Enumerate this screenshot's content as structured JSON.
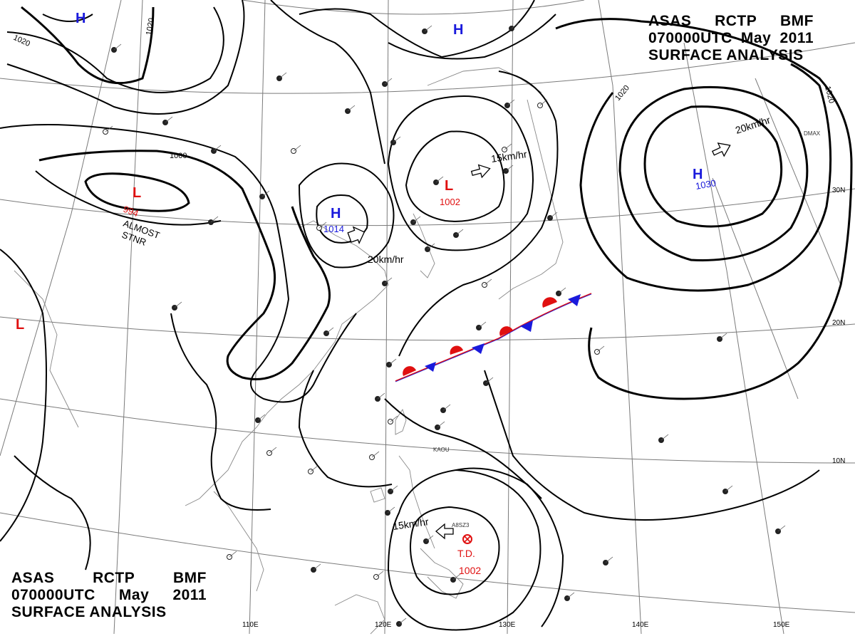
{
  "header": {
    "line1": [
      "ASAS",
      "RCTP",
      "BMF"
    ],
    "line2": [
      "070000UTC",
      "May",
      "2011"
    ],
    "line3": "SURFACE ANALYSIS"
  },
  "lon_labels": [
    "110E",
    "120E",
    "130E",
    "140E",
    "150E"
  ],
  "lat_labels": [
    "30N",
    "20N",
    "10N"
  ],
  "isobar_labels": {
    "nw_1020": "1020",
    "nw2_1020": "1020",
    "ne_1020": "1020",
    "ne2_1020": "1020",
    "mid_1000": "1000"
  },
  "systems": {
    "high_north": "H",
    "high_top": "H",
    "high_mid": "H",
    "high_mid_pressure": "1014",
    "high_east": "H",
    "high_east_pressure": "1030",
    "low_west": "L",
    "low_west_pressure": "994",
    "low_west_note1": "ALMOST",
    "low_west_note2": "STNR",
    "low_north": "L",
    "low_north_pressure": "1002",
    "low_far_west": "L",
    "td_label": "T.D.",
    "td_pressure": "1002",
    "td_id": "A8SZ3"
  },
  "motions": {
    "mid_high": "20km/hr",
    "north_low": "15km/hr",
    "east_high": "20km/hr",
    "td": "15km/hr"
  },
  "stations": [
    "KAOU",
    "DMAX"
  ],
  "colors": {
    "high": "#1a1adc",
    "low": "#e01010",
    "isobar": "#000000",
    "grid": "#7a7a7a",
    "coast": "#888888"
  }
}
